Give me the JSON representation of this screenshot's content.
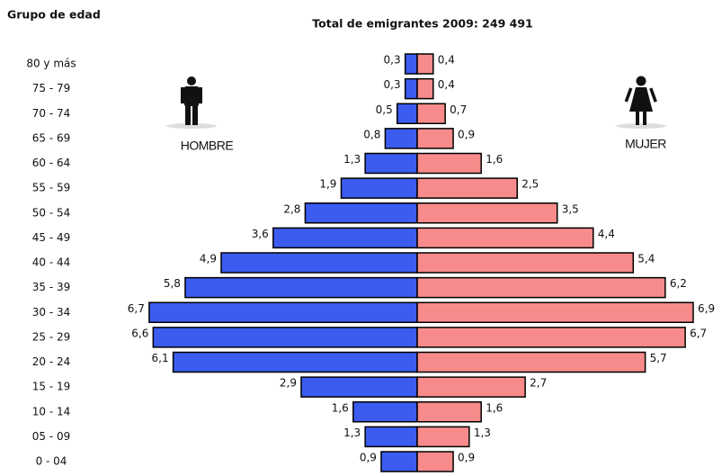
{
  "chart_data": {
    "type": "pyramid",
    "title": "Total de emigrantes 2009: 249 491",
    "ylabel": "Grupo de edad",
    "categories": [
      "80 y más",
      "75 - 79",
      "70 - 74",
      "65 - 69",
      "60 - 64",
      "55 - 59",
      "50 - 54",
      "45 - 49",
      "40 - 44",
      "35 - 39",
      "30 - 34",
      "25 - 29",
      "20 - 24",
      "15 - 19",
      "10 - 14",
      "05 - 09",
      "0 - 04"
    ],
    "series": [
      {
        "name": "HOMBRE",
        "color": "#3b5cef",
        "values": [
          0.3,
          0.3,
          0.5,
          0.8,
          1.3,
          1.9,
          2.8,
          3.6,
          4.9,
          5.8,
          6.7,
          6.6,
          6.1,
          2.9,
          1.6,
          1.3,
          0.9
        ],
        "value_labels": [
          "0,3",
          "0,3",
          "0,5",
          "0,8",
          "1,3",
          "1,9",
          "2,8",
          "3,6",
          "4,9",
          "5,8",
          "6,7",
          "6,6",
          "6,1",
          "2,9",
          "1,6",
          "1,3",
          "0,9"
        ]
      },
      {
        "name": "MUJER",
        "color": "#f78b8b",
        "values": [
          0.4,
          0.4,
          0.7,
          0.9,
          1.6,
          2.5,
          3.5,
          4.4,
          5.4,
          6.2,
          6.9,
          6.7,
          5.7,
          2.7,
          1.6,
          1.3,
          0.9
        ],
        "value_labels": [
          "0,4",
          "0,4",
          "0,7",
          "0,9",
          "1,6",
          "2,5",
          "3,5",
          "4,4",
          "5,4",
          "6,2",
          "6,9",
          "6,7",
          "5,7",
          "2,7",
          "1,6",
          "1,3",
          "0,9"
        ]
      }
    ]
  }
}
